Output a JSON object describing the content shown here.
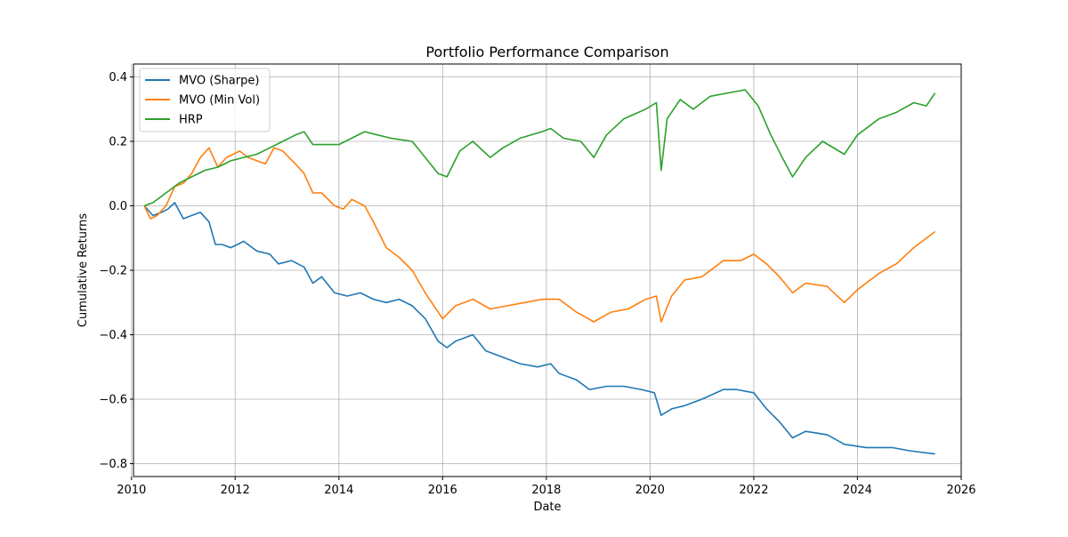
{
  "chart_data": {
    "type": "line",
    "title": "Portfolio Performance Comparison",
    "xlabel": "Date",
    "ylabel": "Cumulative Returns",
    "xlim": [
      "2010-01-15",
      "2026-01-01"
    ],
    "ylim": [
      -0.84,
      0.44
    ],
    "x_ticks": [
      "2010",
      "2012",
      "2014",
      "2016",
      "2018",
      "2020",
      "2022",
      "2024",
      "2026"
    ],
    "y_ticks": [
      0.4,
      0.2,
      0.0,
      -0.2,
      -0.4,
      -0.6,
      -0.8
    ],
    "y_tick_labels": [
      "0.4",
      "0.2",
      "0.0",
      "−0.2",
      "−0.4",
      "−0.6",
      "−0.8"
    ],
    "grid": true,
    "legend_position": "top-left",
    "series": [
      {
        "name": "MVO (Sharpe)",
        "color": "#1f77b4",
        "points": [
          [
            "2010-04-01",
            0.0
          ],
          [
            "2010-06-01",
            -0.03
          ],
          [
            "2010-08-01",
            -0.02
          ],
          [
            "2010-09-15",
            -0.01
          ],
          [
            "2010-11-01",
            0.01
          ],
          [
            "2011-01-01",
            -0.04
          ],
          [
            "2011-03-01",
            -0.03
          ],
          [
            "2011-05-01",
            -0.02
          ],
          [
            "2011-07-01",
            -0.05
          ],
          [
            "2011-08-15",
            -0.12
          ],
          [
            "2011-10-01",
            -0.12
          ],
          [
            "2011-12-01",
            -0.13
          ],
          [
            "2012-03-01",
            -0.11
          ],
          [
            "2012-06-01",
            -0.14
          ],
          [
            "2012-09-01",
            -0.15
          ],
          [
            "2012-11-01",
            -0.18
          ],
          [
            "2013-02-01",
            -0.17
          ],
          [
            "2013-05-01",
            -0.19
          ],
          [
            "2013-07-01",
            -0.24
          ],
          [
            "2013-09-01",
            -0.22
          ],
          [
            "2013-12-01",
            -0.27
          ],
          [
            "2014-03-01",
            -0.28
          ],
          [
            "2014-06-01",
            -0.27
          ],
          [
            "2014-09-01",
            -0.29
          ],
          [
            "2014-12-01",
            -0.3
          ],
          [
            "2015-03-01",
            -0.29
          ],
          [
            "2015-06-01",
            -0.31
          ],
          [
            "2015-09-01",
            -0.35
          ],
          [
            "2015-12-01",
            -0.42
          ],
          [
            "2016-02-01",
            -0.44
          ],
          [
            "2016-04-01",
            -0.42
          ],
          [
            "2016-08-01",
            -0.4
          ],
          [
            "2016-11-01",
            -0.45
          ],
          [
            "2017-03-01",
            -0.47
          ],
          [
            "2017-07-01",
            -0.49
          ],
          [
            "2017-11-01",
            -0.5
          ],
          [
            "2018-02-01",
            -0.49
          ],
          [
            "2018-04-01",
            -0.52
          ],
          [
            "2018-08-01",
            -0.54
          ],
          [
            "2018-11-01",
            -0.57
          ],
          [
            "2019-03-01",
            -0.56
          ],
          [
            "2019-07-01",
            -0.56
          ],
          [
            "2019-11-01",
            -0.57
          ],
          [
            "2020-02-01",
            -0.58
          ],
          [
            "2020-03-20",
            -0.65
          ],
          [
            "2020-06-01",
            -0.63
          ],
          [
            "2020-09-01",
            -0.62
          ],
          [
            "2021-01-01",
            -0.6
          ],
          [
            "2021-06-01",
            -0.57
          ],
          [
            "2021-09-01",
            -0.57
          ],
          [
            "2022-01-01",
            -0.58
          ],
          [
            "2022-04-01",
            -0.63
          ],
          [
            "2022-07-01",
            -0.67
          ],
          [
            "2022-10-01",
            -0.72
          ],
          [
            "2023-01-01",
            -0.7
          ],
          [
            "2023-06-01",
            -0.71
          ],
          [
            "2023-10-01",
            -0.74
          ],
          [
            "2024-03-01",
            -0.75
          ],
          [
            "2024-09-01",
            -0.75
          ],
          [
            "2025-01-01",
            -0.76
          ],
          [
            "2025-07-01",
            -0.77
          ]
        ]
      },
      {
        "name": "MVO (Min Vol)",
        "color": "#ff7f0e",
        "points": [
          [
            "2010-04-01",
            0.0
          ],
          [
            "2010-05-15",
            -0.04
          ],
          [
            "2010-07-01",
            -0.03
          ],
          [
            "2010-09-01",
            0.0
          ],
          [
            "2010-11-01",
            0.06
          ],
          [
            "2011-01-01",
            0.07
          ],
          [
            "2011-03-01",
            0.1
          ],
          [
            "2011-05-01",
            0.15
          ],
          [
            "2011-07-01",
            0.18
          ],
          [
            "2011-09-01",
            0.12
          ],
          [
            "2011-11-01",
            0.15
          ],
          [
            "2012-02-01",
            0.17
          ],
          [
            "2012-04-01",
            0.15
          ],
          [
            "2012-06-01",
            0.14
          ],
          [
            "2012-08-01",
            0.13
          ],
          [
            "2012-10-01",
            0.18
          ],
          [
            "2012-12-01",
            0.17
          ],
          [
            "2013-03-01",
            0.13
          ],
          [
            "2013-05-01",
            0.1
          ],
          [
            "2013-07-01",
            0.04
          ],
          [
            "2013-09-01",
            0.04
          ],
          [
            "2013-12-01",
            0.0
          ],
          [
            "2014-02-01",
            -0.01
          ],
          [
            "2014-04-01",
            0.02
          ],
          [
            "2014-07-01",
            0.0
          ],
          [
            "2014-09-01",
            -0.05
          ],
          [
            "2014-12-01",
            -0.13
          ],
          [
            "2015-03-01",
            -0.16
          ],
          [
            "2015-06-01",
            -0.2
          ],
          [
            "2015-09-01",
            -0.27
          ],
          [
            "2016-01-01",
            -0.35
          ],
          [
            "2016-04-01",
            -0.31
          ],
          [
            "2016-08-01",
            -0.29
          ],
          [
            "2016-12-01",
            -0.32
          ],
          [
            "2017-04-01",
            -0.31
          ],
          [
            "2017-08-01",
            -0.3
          ],
          [
            "2017-12-01",
            -0.29
          ],
          [
            "2018-04-01",
            -0.29
          ],
          [
            "2018-08-01",
            -0.33
          ],
          [
            "2018-12-01",
            -0.36
          ],
          [
            "2019-04-01",
            -0.33
          ],
          [
            "2019-08-01",
            -0.32
          ],
          [
            "2019-12-01",
            -0.29
          ],
          [
            "2020-02-15",
            -0.28
          ],
          [
            "2020-03-20",
            -0.36
          ],
          [
            "2020-06-01",
            -0.28
          ],
          [
            "2020-09-01",
            -0.23
          ],
          [
            "2021-01-01",
            -0.22
          ],
          [
            "2021-06-01",
            -0.17
          ],
          [
            "2021-10-01",
            -0.17
          ],
          [
            "2022-01-01",
            -0.15
          ],
          [
            "2022-04-01",
            -0.18
          ],
          [
            "2022-07-01",
            -0.22
          ],
          [
            "2022-10-01",
            -0.27
          ],
          [
            "2023-01-01",
            -0.24
          ],
          [
            "2023-06-01",
            -0.25
          ],
          [
            "2023-10-01",
            -0.3
          ],
          [
            "2024-01-01",
            -0.26
          ],
          [
            "2024-06-01",
            -0.21
          ],
          [
            "2024-10-01",
            -0.18
          ],
          [
            "2025-02-01",
            -0.13
          ],
          [
            "2025-07-01",
            -0.08
          ]
        ]
      },
      {
        "name": "HRP",
        "color": "#2ca02c",
        "points": [
          [
            "2010-04-01",
            0.0
          ],
          [
            "2010-06-01",
            0.01
          ],
          [
            "2010-09-01",
            0.04
          ],
          [
            "2010-12-01",
            0.07
          ],
          [
            "2011-03-01",
            0.09
          ],
          [
            "2011-06-01",
            0.11
          ],
          [
            "2011-09-01",
            0.12
          ],
          [
            "2011-12-01",
            0.14
          ],
          [
            "2012-03-01",
            0.15
          ],
          [
            "2012-06-01",
            0.16
          ],
          [
            "2012-09-01",
            0.18
          ],
          [
            "2012-12-01",
            0.2
          ],
          [
            "2013-03-01",
            0.22
          ],
          [
            "2013-05-01",
            0.23
          ],
          [
            "2013-07-01",
            0.19
          ],
          [
            "2013-10-01",
            0.19
          ],
          [
            "2014-01-01",
            0.19
          ],
          [
            "2014-04-01",
            0.21
          ],
          [
            "2014-07-01",
            0.23
          ],
          [
            "2014-10-01",
            0.22
          ],
          [
            "2015-01-01",
            0.21
          ],
          [
            "2015-06-01",
            0.2
          ],
          [
            "2015-09-01",
            0.15
          ],
          [
            "2015-12-01",
            0.1
          ],
          [
            "2016-02-01",
            0.09
          ],
          [
            "2016-05-01",
            0.17
          ],
          [
            "2016-08-01",
            0.2
          ],
          [
            "2016-12-01",
            0.15
          ],
          [
            "2017-03-01",
            0.18
          ],
          [
            "2017-07-01",
            0.21
          ],
          [
            "2017-12-01",
            0.23
          ],
          [
            "2018-02-01",
            0.24
          ],
          [
            "2018-05-01",
            0.21
          ],
          [
            "2018-09-01",
            0.2
          ],
          [
            "2018-12-01",
            0.15
          ],
          [
            "2019-03-01",
            0.22
          ],
          [
            "2019-07-01",
            0.27
          ],
          [
            "2019-12-01",
            0.3
          ],
          [
            "2020-02-15",
            0.32
          ],
          [
            "2020-03-20",
            0.11
          ],
          [
            "2020-05-01",
            0.27
          ],
          [
            "2020-08-01",
            0.33
          ],
          [
            "2020-11-01",
            0.3
          ],
          [
            "2021-03-01",
            0.34
          ],
          [
            "2021-07-01",
            0.35
          ],
          [
            "2021-11-01",
            0.36
          ],
          [
            "2022-02-01",
            0.31
          ],
          [
            "2022-05-01",
            0.22
          ],
          [
            "2022-08-01",
            0.14
          ],
          [
            "2022-10-01",
            0.09
          ],
          [
            "2023-01-01",
            0.15
          ],
          [
            "2023-05-01",
            0.2
          ],
          [
            "2023-10-01",
            0.16
          ],
          [
            "2024-01-01",
            0.22
          ],
          [
            "2024-06-01",
            0.27
          ],
          [
            "2024-10-01",
            0.29
          ],
          [
            "2025-02-01",
            0.32
          ],
          [
            "2025-05-01",
            0.31
          ],
          [
            "2025-07-01",
            0.35
          ]
        ]
      }
    ]
  }
}
